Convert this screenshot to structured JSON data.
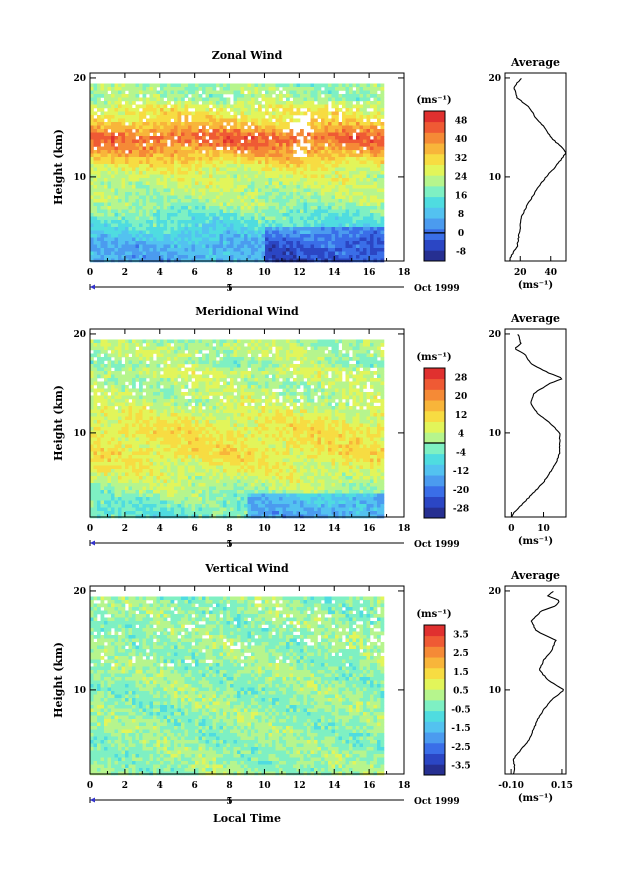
{
  "chart_data": [
    {
      "type": "heatmap",
      "title": "Zonal Wind",
      "ylabel": "Height (km)",
      "xlabel": "",
      "x_ticks": [
        "0",
        "2",
        "4",
        "6",
        "8",
        "10",
        "12",
        "14",
        "16",
        "18"
      ],
      "y_ticks": [
        "20",
        "10"
      ],
      "xlim": [
        0,
        18
      ],
      "ylim": [
        1.5,
        20.5
      ],
      "data_x_range": [
        0,
        16.8
      ],
      "date_label": "Oct 1999",
      "date_bar_label": "5",
      "colorbar": {
        "unit": "(ms⁻¹)",
        "ticks": [
          "48",
          "40",
          "32",
          "24",
          "16",
          "8",
          "0",
          "-8"
        ],
        "min": -12,
        "max": 52,
        "zero_line": 0,
        "colors": [
          "#262f91",
          "#2b46c4",
          "#3a6ee8",
          "#4b9bef",
          "#53c2f0",
          "#4fdce0",
          "#7ef0c3",
          "#b6f58d",
          "#e2f55a",
          "#f7dc42",
          "#f8b53a",
          "#f58a36",
          "#ef5a34",
          "#e0302f"
        ]
      },
      "field": {
        "heights_km": [
          2,
          3,
          4,
          5,
          6,
          7,
          8,
          9,
          10,
          11,
          12,
          13,
          14,
          15,
          16,
          17,
          18,
          19,
          20
        ],
        "values": [
          6,
          7,
          10,
          14,
          16,
          20,
          22,
          24,
          25,
          28,
          34,
          40,
          44,
          36,
          30,
          28,
          20,
          22,
          14
        ]
      },
      "profile": {
        "title": "Average",
        "x_ticks": [
          "20",
          "40"
        ],
        "xlim": [
          10,
          50
        ],
        "unit": "(ms⁻¹)",
        "heights_km": [
          1.5,
          2,
          3,
          4,
          5,
          6,
          7,
          8,
          9,
          10,
          11,
          12,
          12.5,
          13,
          14,
          15,
          16,
          17,
          18,
          19,
          19.5,
          20
        ],
        "values": [
          13,
          14,
          18,
          19,
          20,
          21,
          24,
          28,
          32,
          37,
          43,
          48,
          50,
          47,
          40,
          36,
          30,
          26,
          18,
          16,
          18,
          21
        ]
      }
    },
    {
      "type": "heatmap",
      "title": "Meridional Wind",
      "ylabel": "Height (km)",
      "xlabel": "",
      "x_ticks": [
        "0",
        "2",
        "4",
        "6",
        "8",
        "10",
        "12",
        "14",
        "16",
        "18"
      ],
      "y_ticks": [
        "20",
        "10"
      ],
      "xlim": [
        0,
        18
      ],
      "ylim": [
        1.5,
        20.5
      ],
      "data_x_range": [
        0,
        16.8
      ],
      "date_label": "Oct 1999",
      "date_bar_label": "5",
      "colorbar": {
        "unit": "(ms⁻¹)",
        "ticks": [
          "28",
          "20",
          "12",
          "4",
          "-4",
          "-12",
          "-20",
          "-28"
        ],
        "min": -32,
        "max": 32,
        "zero_line": 0,
        "colors": [
          "#262f91",
          "#2b46c4",
          "#3a6ee8",
          "#4b9bef",
          "#53c2f0",
          "#4fdce0",
          "#7ef0c3",
          "#b6f58d",
          "#e2f55a",
          "#f7dc42",
          "#f8b53a",
          "#f58a36",
          "#ef5a34",
          "#e0302f"
        ]
      },
      "field": {
        "heights_km": [
          2,
          3,
          4,
          5,
          6,
          7,
          8,
          9,
          10,
          11,
          12,
          13,
          14,
          15,
          16,
          17,
          18,
          19,
          20
        ],
        "values": [
          -4,
          -2,
          1,
          4,
          6,
          8,
          10,
          9,
          10,
          8,
          6,
          4,
          3,
          2,
          5,
          0,
          4,
          2,
          0
        ]
      },
      "profile": {
        "title": "Average",
        "x_ticks": [
          "0",
          "10"
        ],
        "xlim": [
          -2,
          17
        ],
        "unit": "(ms⁻¹)",
        "heights_km": [
          1.5,
          2,
          3,
          4,
          5,
          6,
          7,
          8,
          9,
          10,
          11,
          12,
          13,
          14,
          15,
          15.5,
          16,
          17,
          18,
          18.5,
          19,
          20
        ],
        "values": [
          0,
          1,
          4,
          7,
          10,
          12,
          14,
          15,
          15,
          15,
          12,
          8,
          6,
          7,
          12,
          16,
          12,
          6,
          4,
          1,
          3,
          2
        ]
      }
    },
    {
      "type": "heatmap",
      "title": "Vertical Wind",
      "ylabel": "Height (km)",
      "xlabel": "Local Time",
      "x_ticks": [
        "0",
        "2",
        "4",
        "6",
        "8",
        "10",
        "12",
        "14",
        "16",
        "18"
      ],
      "y_ticks": [
        "20",
        "10"
      ],
      "xlim": [
        0,
        18
      ],
      "ylim": [
        1.5,
        20.5
      ],
      "data_x_range": [
        0,
        16.8
      ],
      "date_label": "Oct 1999",
      "date_bar_label": "5",
      "colorbar": {
        "unit": "(ms⁻¹)",
        "ticks": [
          "3.5",
          "2.5",
          "1.5",
          "0.5",
          "-0.5",
          "-1.5",
          "-2.5",
          "-3.5"
        ],
        "min": -4,
        "max": 4,
        "zero_line": null,
        "colors": [
          "#262f91",
          "#2b46c4",
          "#3a6ee8",
          "#4b9bef",
          "#53c2f0",
          "#4fdce0",
          "#7ef0c3",
          "#b6f58d",
          "#e2f55a",
          "#f7dc42",
          "#f8b53a",
          "#f58a36",
          "#ef5a34",
          "#e0302f"
        ]
      },
      "field": {
        "heights_km": [
          2,
          3,
          4,
          5,
          6,
          7,
          8,
          9,
          10,
          11,
          12,
          13,
          14,
          15,
          16,
          17,
          18,
          19,
          20
        ],
        "values": [
          0,
          0,
          0,
          0,
          0,
          0,
          0,
          0,
          0,
          0,
          0,
          0,
          0,
          0,
          0,
          0,
          0,
          0,
          0
        ]
      },
      "profile": {
        "title": "Average",
        "x_ticks": [
          "-0.10",
          "0.15"
        ],
        "xlim": [
          -0.13,
          0.17
        ],
        "unit": "(ms⁻¹)",
        "heights_km": [
          1.5,
          2,
          3,
          4,
          5,
          6,
          7,
          8,
          9,
          10,
          11,
          12,
          13,
          14,
          15,
          16,
          17,
          18,
          18.5,
          19,
          19.5,
          20
        ],
        "values": [
          -0.09,
          -0.08,
          -0.09,
          -0.05,
          -0.01,
          0.01,
          0.03,
          0.06,
          0.1,
          0.16,
          0.08,
          0.04,
          0.06,
          0.1,
          0.12,
          0.02,
          0.0,
          0.05,
          0.12,
          0.14,
          0.08,
          0.11
        ]
      }
    }
  ]
}
